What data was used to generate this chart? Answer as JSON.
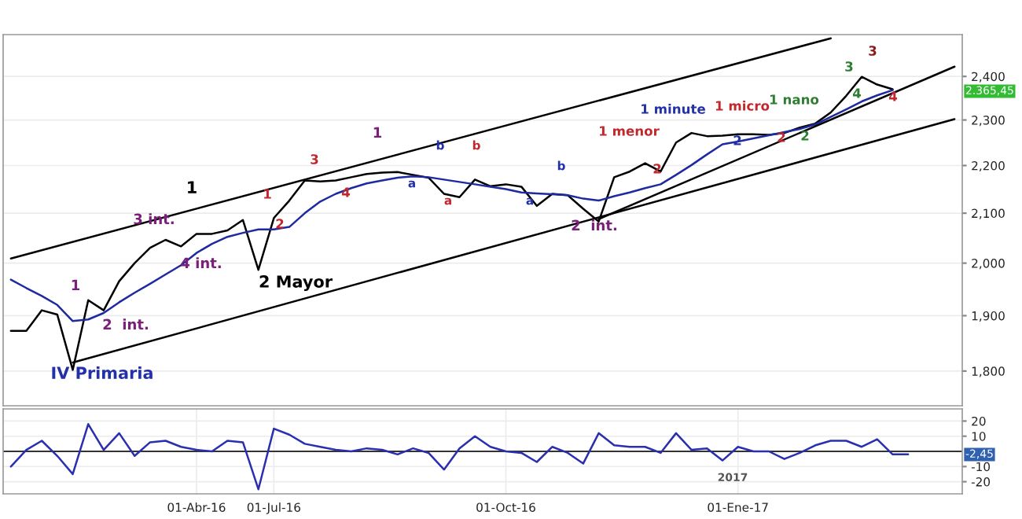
{
  "chart_data": [
    {
      "type": "line",
      "log": "y",
      "grid": true,
      "tick_labels": "y",
      "ylim": [
        1740,
        2500
      ],
      "yticks": [
        {
          "value": 1800,
          "label": "1,800"
        },
        {
          "value": 1900,
          "label": "1,900"
        },
        {
          "value": 2000,
          "label": "2,000"
        },
        {
          "value": 2100,
          "label": "2,100"
        },
        {
          "value": 2200,
          "label": "2,200"
        },
        {
          "value": 2300,
          "label": "2,300"
        },
        {
          "value": 2400,
          "label": "2,400"
        }
      ],
      "categories": [
        null,
        null,
        null,
        null,
        null,
        null,
        null,
        null,
        null,
        null,
        null,
        null,
        null,
        null,
        null,
        null,
        null,
        null,
        null,
        null,
        null,
        null,
        null,
        null,
        null,
        null,
        null,
        null,
        null,
        null,
        null,
        null,
        null,
        null,
        null,
        null,
        null,
        null,
        null,
        null,
        null,
        null,
        null,
        null,
        null,
        null,
        null,
        null,
        null,
        null,
        null,
        null,
        null,
        null,
        null,
        null,
        null,
        null,
        null,
        null,
        null,
        null
      ],
      "series": [
        {
          "color": "#000000",
          "values": [
            1872,
            1872,
            1910,
            1902,
            1802,
            1929,
            1910,
            1965,
            2000,
            2030,
            2046,
            2033,
            2058,
            2058,
            2065,
            2086,
            1987,
            2090,
            2126,
            2168,
            2166,
            2168,
            2175,
            2182,
            2185,
            2186,
            2180,
            2174,
            2140,
            2133,
            2170,
            2156,
            2160,
            2155,
            2115,
            2140,
            2137,
            2109,
            2083,
            2175,
            2187,
            2205,
            2187,
            2250,
            2271,
            2264,
            2265,
            2268,
            2268,
            2267,
            2271,
            2283,
            2292,
            2317,
            2355,
            2399,
            2381,
            2370,
            null,
            null,
            null,
            null
          ]
        },
        {
          "color": "#1e2aa0",
          "values": [
            1968,
            1952,
            1937,
            1920,
            1890,
            1893,
            1905,
            1925,
            1943,
            1960,
            1978,
            1996,
            2020,
            2038,
            2052,
            2060,
            2067,
            2067,
            2072,
            2100,
            2124,
            2140,
            2152,
            2162,
            2168,
            2174,
            2177,
            2175,
            2170,
            2165,
            2160,
            2155,
            2150,
            2143,
            2141,
            2139,
            2137,
            2130,
            2126,
            2135,
            2143,
            2152,
            2160,
            2180,
            2201,
            2224,
            2246,
            2252,
            2259,
            2266,
            2273,
            2280,
            2290,
            2307,
            2324,
            2342,
            2356,
            2368,
            null,
            null,
            null,
            null
          ]
        },
        {
          "color": "#000000",
          "values": [
            2009,
            null,
            null,
            null,
            null,
            null,
            null,
            null,
            null,
            null,
            null,
            null,
            null,
            null,
            null,
            null,
            null,
            null,
            null,
            null,
            null,
            null,
            null,
            null,
            null,
            null,
            null,
            null,
            null,
            null,
            null,
            null,
            null,
            null,
            null,
            null,
            null,
            null,
            null,
            null,
            null,
            null,
            null,
            null,
            null,
            null,
            null,
            null,
            null,
            null,
            null,
            null,
            null,
            2491,
            null,
            null,
            null,
            null,
            null,
            null,
            null,
            null
          ]
        },
        {
          "color": "#000000",
          "values": [
            null,
            null,
            null,
            null,
            1815,
            null,
            null,
            null,
            null,
            null,
            null,
            null,
            null,
            null,
            null,
            null,
            null,
            null,
            null,
            null,
            null,
            null,
            null,
            null,
            null,
            null,
            null,
            null,
            null,
            null,
            null,
            null,
            null,
            null,
            null,
            null,
            null,
            null,
            null,
            null,
            null,
            null,
            null,
            null,
            null,
            null,
            null,
            null,
            null,
            null,
            null,
            null,
            null,
            null,
            null,
            null,
            null,
            null,
            null,
            null,
            null,
            2302
          ]
        },
        {
          "color": "#000000",
          "values": [
            null,
            null,
            null,
            null,
            null,
            null,
            null,
            null,
            null,
            null,
            null,
            null,
            null,
            null,
            null,
            null,
            null,
            null,
            null,
            null,
            null,
            null,
            null,
            null,
            null,
            null,
            null,
            null,
            null,
            null,
            null,
            null,
            null,
            null,
            null,
            null,
            null,
            null,
            2088,
            null,
            null,
            null,
            null,
            null,
            null,
            null,
            null,
            null,
            null,
            null,
            null,
            null,
            null,
            null,
            null,
            null,
            null,
            null,
            null,
            null,
            null,
            2423
          ]
        }
      ],
      "annotations": [
        "IV Primaria",
        "2  int.",
        "1",
        "4 int.",
        "3 int.",
        "1",
        "2 Mayor",
        "1",
        "2",
        "3",
        "4",
        "1",
        "a",
        "b",
        "a",
        "b",
        "a",
        "b",
        "2  int.",
        "1 menor",
        "2",
        "1 minute",
        "2",
        "1 micro",
        "2",
        "1 nano",
        "2",
        "3",
        "4",
        "3",
        "4",
        "2.365,45"
      ]
    },
    {
      "type": "line",
      "grid": true,
      "ylim": [
        -28,
        28
      ],
      "yticks": [
        -20,
        -10,
        10,
        20
      ],
      "categories": [
        null,
        null,
        null,
        null,
        null,
        null,
        null,
        null,
        null,
        null,
        null,
        null,
        "01-Abr-16",
        null,
        null,
        null,
        null,
        "01-Jul-16",
        null,
        null,
        null,
        null,
        null,
        null,
        null,
        null,
        null,
        null,
        null,
        null,
        null,
        null,
        "01-Oct-16",
        null,
        null,
        null,
        null,
        null,
        null,
        null,
        null,
        null,
        null,
        null,
        null,
        null,
        null,
        "01-Ene-17",
        null,
        null,
        null,
        null,
        null,
        null,
        null,
        null,
        null,
        null,
        null,
        null,
        null,
        null
      ],
      "ref_lines": [
        {
          "axis": "y",
          "value": 0,
          "color": "#333333"
        }
      ],
      "series": [
        {
          "color": "#2a2fb0",
          "values": [
            -10,
            1,
            7,
            -3,
            -15,
            18,
            1,
            12,
            -3,
            6,
            7,
            3,
            1,
            0,
            7,
            6,
            -25,
            15,
            11,
            5,
            3,
            1,
            0,
            2,
            1,
            -2,
            2,
            -1,
            -12,
            2,
            10,
            3,
            0,
            -1,
            -7,
            3,
            -1,
            -8,
            12,
            4,
            3,
            3,
            -1,
            12,
            1,
            2,
            -6,
            3,
            0,
            0,
            -5,
            -1,
            4,
            7,
            7,
            3,
            8,
            -2,
            -2,
            null,
            null,
            null
          ]
        }
      ],
      "annotations": [
        "2017",
        "-2,45"
      ]
    }
  ]
}
